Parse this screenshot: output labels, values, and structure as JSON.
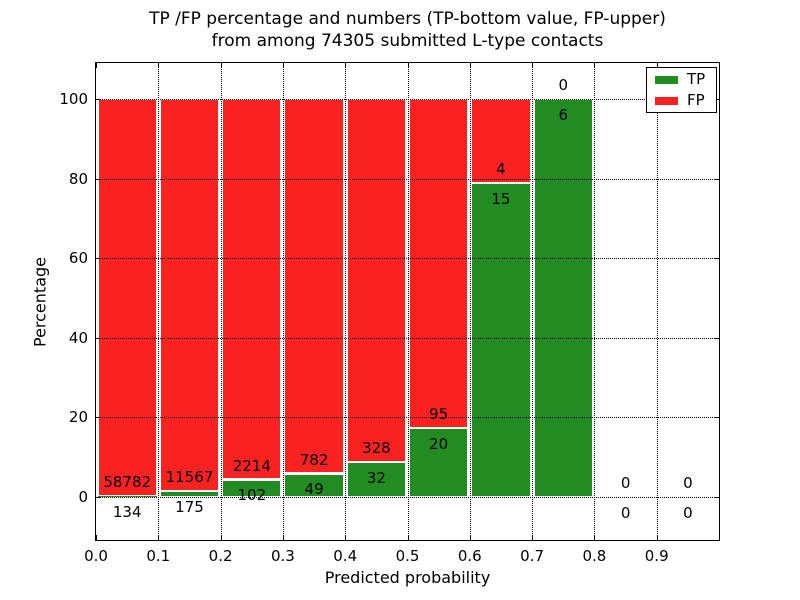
{
  "chart_data": {
    "type": "bar",
    "stacked": true,
    "title_line1": "TP /FP percentage and numbers (TP-bottom value, FP-upper)",
    "title_line2": "from among 74305 submitted L-type contacts",
    "total_submitted": 74305,
    "xlabel": "Predicted probability",
    "ylabel": "Percentage",
    "xlim": [
      0.0,
      1.0
    ],
    "ylim": [
      -10.8,
      109.0
    ],
    "x_ticks": [
      0.0,
      0.1,
      0.2,
      0.3,
      0.4,
      0.5,
      0.6,
      0.7,
      0.8,
      0.9
    ],
    "x_tick_labels": [
      "0.0",
      "0.1",
      "0.2",
      "0.3",
      "0.4",
      "0.5",
      "0.6",
      "0.7",
      "0.8",
      "0.9"
    ],
    "y_ticks": [
      0,
      20,
      40,
      60,
      80,
      100
    ],
    "y_tick_labels": [
      "0",
      "20",
      "40",
      "60",
      "80",
      "100"
    ],
    "grid": "dotted",
    "grid_color": "#000000",
    "bar_edge_color": "#ffffff",
    "bins": [
      {
        "x0": 0.0,
        "x1": 0.1,
        "tp": 134,
        "fp": 58782,
        "tp_pct": 0.23,
        "fp_pct": 99.77
      },
      {
        "x0": 0.1,
        "x1": 0.2,
        "tp": 175,
        "fp": 11567,
        "tp_pct": 1.49,
        "fp_pct": 98.51
      },
      {
        "x0": 0.2,
        "x1": 0.3,
        "tp": 102,
        "fp": 2214,
        "tp_pct": 4.4,
        "fp_pct": 95.6
      },
      {
        "x0": 0.3,
        "x1": 0.4,
        "tp": 49,
        "fp": 782,
        "tp_pct": 5.9,
        "fp_pct": 94.1
      },
      {
        "x0": 0.4,
        "x1": 0.5,
        "tp": 32,
        "fp": 328,
        "tp_pct": 8.89,
        "fp_pct": 91.11
      },
      {
        "x0": 0.5,
        "x1": 0.6,
        "tp": 20,
        "fp": 95,
        "tp_pct": 17.39,
        "fp_pct": 82.61
      },
      {
        "x0": 0.6,
        "x1": 0.7,
        "tp": 15,
        "fp": 4,
        "tp_pct": 78.95,
        "fp_pct": 21.05
      },
      {
        "x0": 0.7,
        "x1": 0.8,
        "tp": 6,
        "fp": 0,
        "tp_pct": 100.0,
        "fp_pct": 0.0
      },
      {
        "x0": 0.8,
        "x1": 0.9,
        "tp": 0,
        "fp": 0,
        "tp_pct": null,
        "fp_pct": null
      },
      {
        "x0": 0.9,
        "x1": 1.0,
        "tp": 0,
        "fp": 0,
        "tp_pct": null,
        "fp_pct": null
      }
    ],
    "legend": {
      "position": "upper right",
      "items": [
        {
          "label": "TP",
          "color": "#228b22"
        },
        {
          "label": "FP",
          "color": "#fa2121"
        }
      ]
    }
  }
}
